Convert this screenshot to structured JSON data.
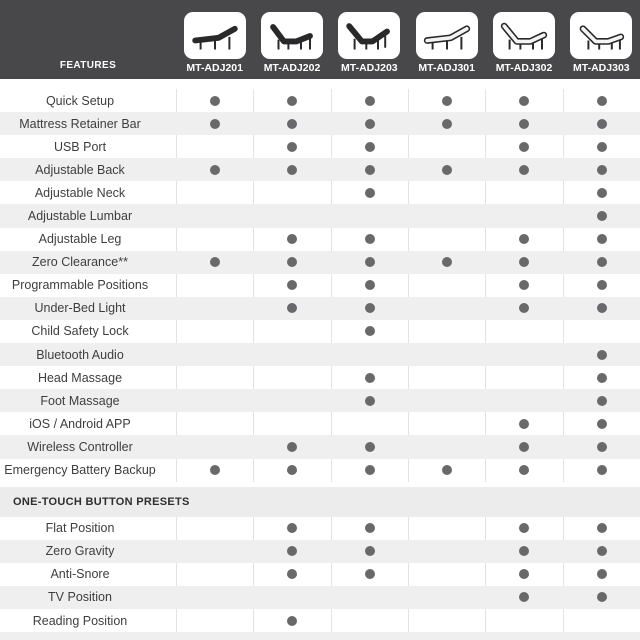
{
  "chart_data": {
    "type": "table",
    "corner_label": "FEATURES",
    "columns": [
      "MT-ADJ201",
      "MT-ADJ202",
      "MT-ADJ203",
      "MT-ADJ301",
      "MT-ADJ302",
      "MT-ADJ303"
    ],
    "value_glyph": "dot = feature included",
    "sections": [
      {
        "title": "",
        "rows": [
          {
            "feature": "Quick Setup",
            "values": [
              1,
              1,
              1,
              1,
              1,
              1
            ]
          },
          {
            "feature": "Mattress Retainer Bar",
            "values": [
              1,
              1,
              1,
              1,
              1,
              1
            ]
          },
          {
            "feature": "USB Port",
            "values": [
              0,
              1,
              1,
              0,
              1,
              1
            ]
          },
          {
            "feature": "Adjustable Back",
            "values": [
              1,
              1,
              1,
              1,
              1,
              1
            ]
          },
          {
            "feature": "Adjustable Neck",
            "values": [
              0,
              0,
              1,
              0,
              0,
              1
            ]
          },
          {
            "feature": "Adjustable Lumbar",
            "values": [
              0,
              0,
              0,
              0,
              0,
              1
            ]
          },
          {
            "feature": "Adjustable Leg",
            "values": [
              0,
              1,
              1,
              0,
              1,
              1
            ]
          },
          {
            "feature": "Zero Clearance**",
            "values": [
              1,
              1,
              1,
              1,
              1,
              1
            ]
          },
          {
            "feature": "Programmable Positions",
            "values": [
              0,
              1,
              1,
              0,
              1,
              1
            ]
          },
          {
            "feature": "Under-Bed Light",
            "values": [
              0,
              1,
              1,
              0,
              1,
              1
            ]
          },
          {
            "feature": "Child Safety Lock",
            "values": [
              0,
              0,
              1,
              0,
              0,
              0
            ]
          },
          {
            "feature": "Bluetooth Audio",
            "values": [
              0,
              0,
              0,
              0,
              0,
              1
            ]
          },
          {
            "feature": "Head Massage",
            "values": [
              0,
              0,
              1,
              0,
              0,
              1
            ]
          },
          {
            "feature": "Foot Massage",
            "values": [
              0,
              0,
              1,
              0,
              0,
              1
            ]
          },
          {
            "feature": "iOS / Android APP",
            "values": [
              0,
              0,
              0,
              0,
              1,
              1
            ]
          },
          {
            "feature": "Wireless Controller",
            "values": [
              0,
              1,
              1,
              0,
              1,
              1
            ]
          },
          {
            "feature": "Emergency Battery Backup",
            "values": [
              1,
              1,
              1,
              1,
              1,
              1
            ]
          }
        ]
      },
      {
        "title": "ONE-TOUCH BUTTON PRESETS",
        "rows": [
          {
            "feature": "Flat Position",
            "values": [
              0,
              1,
              1,
              0,
              1,
              1
            ]
          },
          {
            "feature": "Zero Gravity",
            "values": [
              0,
              1,
              1,
              0,
              1,
              1
            ]
          },
          {
            "feature": "Anti-Snore",
            "values": [
              0,
              1,
              1,
              0,
              1,
              1
            ]
          },
          {
            "feature": "TV Position",
            "values": [
              0,
              0,
              0,
              0,
              1,
              1
            ]
          },
          {
            "feature": "Reading Position",
            "values": [
              0,
              1,
              0,
              0,
              0,
              0
            ]
          }
        ]
      }
    ]
  },
  "header": {
    "features_label": "FEATURES",
    "models": [
      {
        "name": "MT-ADJ201",
        "icon": "bed-slight-incline-dark-icon"
      },
      {
        "name": "MT-ADJ202",
        "icon": "bed-head-raised-dark-icon"
      },
      {
        "name": "MT-ADJ203",
        "icon": "bed-head-foot-raised-dark-icon"
      },
      {
        "name": "MT-ADJ301",
        "icon": "bed-slight-incline-light-icon"
      },
      {
        "name": "MT-ADJ302",
        "icon": "bed-head-raised-light-icon"
      },
      {
        "name": "MT-ADJ303",
        "icon": "bed-head-foot-raised-light-icon"
      }
    ]
  },
  "colors": {
    "header_bg": "#48484a",
    "row_alt_bg": "#efefef",
    "section_bg": "#ececec",
    "divider": "#e3e3e3",
    "dot": "#69696b",
    "feature_text": "#3e3e3e",
    "section_text": "#2e2e2e",
    "model_text": "#ffffff",
    "card_bg": "#ffffff"
  }
}
